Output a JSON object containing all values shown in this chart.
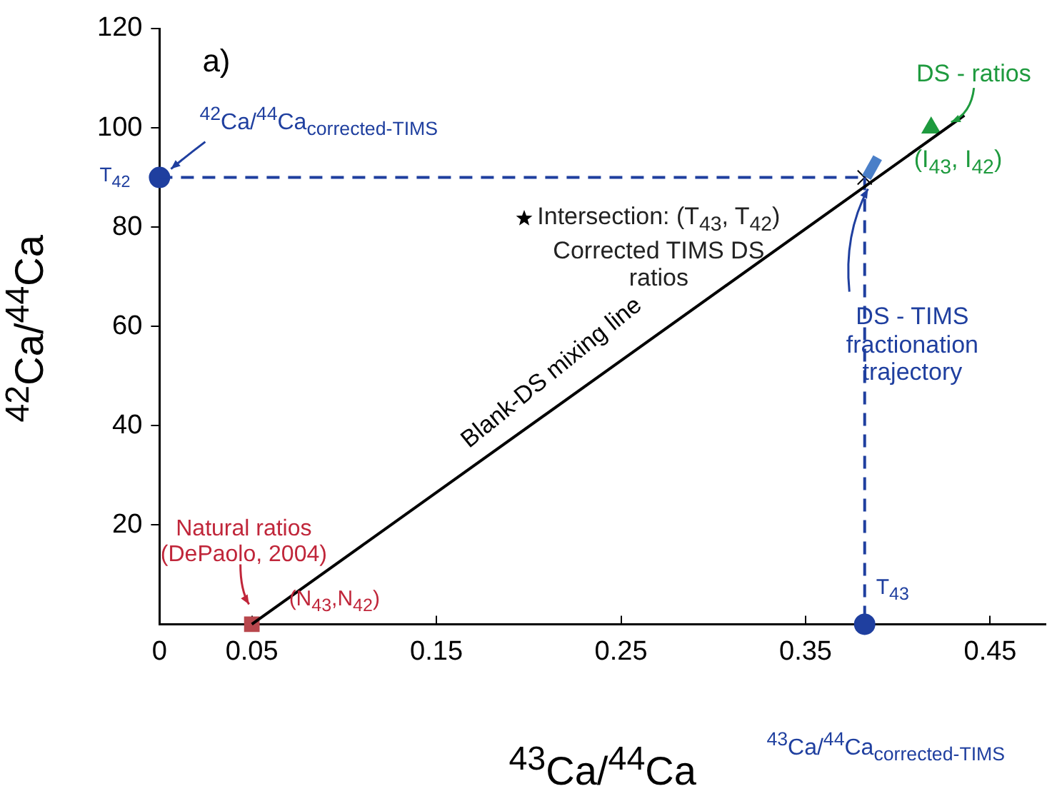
{
  "chart_data": {
    "type": "scatter",
    "xlabel": "$^{43}$Ca/$^{44}$Ca",
    "ylabel": "$^{42}$Ca/$^{44}$Ca",
    "xlim": [
      0,
      0.48
    ],
    "ylim": [
      0,
      120
    ],
    "xticks": [
      0,
      0.05,
      0.15,
      0.25,
      0.35,
      0.45
    ],
    "yticks": [
      20,
      40,
      60,
      80,
      100,
      120
    ],
    "grid": false,
    "legend": false,
    "series": [
      {
        "type": "line",
        "color": "#000000",
        "x": [
          0.05,
          0.436
        ],
        "values": [
          0,
          102.5
        ],
        "marker": "none",
        "line_style": "solid"
      },
      {
        "type": "line",
        "color": "#1f3f9f",
        "x": [
          0,
          0.382
        ],
        "values": [
          90,
          90
        ],
        "marker": "none",
        "line_style": "dashed"
      },
      {
        "type": "line",
        "color": "#1f3f9f",
        "x": [
          0.382,
          0.382
        ],
        "values": [
          90,
          0
        ],
        "marker": "none",
        "line_style": "dashed"
      },
      {
        "type": "line",
        "color": "#4a7fc8",
        "x": [
          0.383,
          0.389
        ],
        "values": [
          90,
          94
        ],
        "marker": "none",
        "line_style": "solid"
      },
      {
        "type": "scatter",
        "color": "#1f3f9f",
        "x": [
          0,
          0.382
        ],
        "values": [
          90,
          0
        ],
        "marker": "circle"
      },
      {
        "type": "scatter",
        "color": "#b8474d",
        "x": [
          0.05
        ],
        "values": [
          0
        ],
        "marker": "square"
      },
      {
        "type": "scatter",
        "color": "#1e9a3e",
        "x": [
          0.418
        ],
        "values": [
          100
        ],
        "marker": "triangle"
      },
      {
        "type": "scatter",
        "color": "#000000",
        "x": [
          0.382
        ],
        "values": [
          90
        ],
        "marker": "cross"
      }
    ],
    "annotations": [
      "a)",
      {
        "text": "$^{42}$Ca/$^{44}$Ca$_{corrected-TIMS}$",
        "x": 0,
        "y": 90
      },
      {
        "text": "T$_{42}$",
        "x": 0,
        "y": 90
      },
      "Intersection: (T$_{43}$, T$_{42}$) Corrected TIMS DS ratios",
      {
        "text": "DS - ratios",
        "x": 0.418,
        "y": 100
      },
      {
        "text": "(I$_{43}$, I$_{42}$)",
        "x": 0.418,
        "y": 100
      },
      {
        "text": "DS - TIMS fractionation trajectory",
        "x": 0.383,
        "y": 90
      },
      {
        "text": "Blank-DS mixing line",
        "x": 0.22,
        "y": 46
      },
      {
        "text": "Natural ratios (DePaolo, 2004)",
        "x": 0.05,
        "y": 0
      },
      {
        "text": "(N$_{43}$,N$_{42}$)",
        "x": 0.05,
        "y": 0
      },
      {
        "text": "T$_{43}$",
        "x": 0.382,
        "y": 0
      },
      "$^{43}$Ca/$^{44}$Ca$_{corrected-TIMS}$"
    ]
  }
}
